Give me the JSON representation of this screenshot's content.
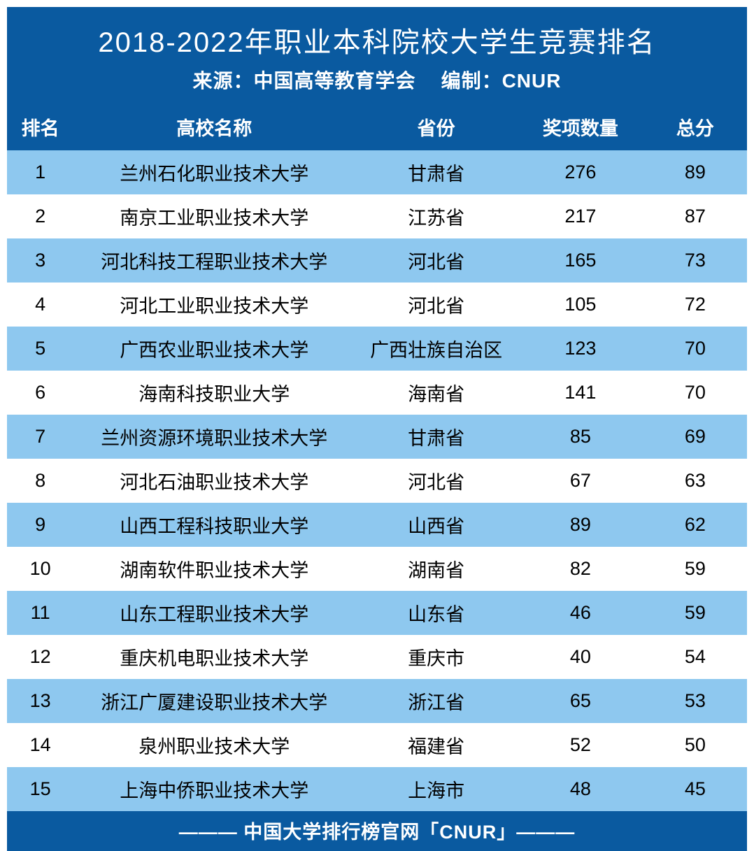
{
  "colors": {
    "header_bg": "#0a5aa0",
    "header_text": "#ffffff",
    "thead_bg": "#0a5aa0",
    "thead_text": "#ffffff",
    "row_even_bg": "#8ec8ef",
    "row_odd_bg": "#ffffff",
    "row_text": "#000000",
    "footer_bg": "#0a5aa0",
    "footer_text": "#ffffff"
  },
  "title": "2018-2022年职业本科院校大学生竞赛排名",
  "subtitle_source_label": "来源：",
  "subtitle_source_value": "中国高等教育学会",
  "subtitle_compiled_label": "编制：",
  "subtitle_compiled_value": "CNUR",
  "columns": {
    "rank": "排名",
    "name": "高校名称",
    "province": "省份",
    "awards": "奖项数量",
    "score": "总分"
  },
  "rows": [
    {
      "rank": "1",
      "name": "兰州石化职业技术大学",
      "province": "甘肃省",
      "awards": "276",
      "score": "89"
    },
    {
      "rank": "2",
      "name": "南京工业职业技术大学",
      "province": "江苏省",
      "awards": "217",
      "score": "87"
    },
    {
      "rank": "3",
      "name": "河北科技工程职业技术大学",
      "province": "河北省",
      "awards": "165",
      "score": "73"
    },
    {
      "rank": "4",
      "name": "河北工业职业技术大学",
      "province": "河北省",
      "awards": "105",
      "score": "72"
    },
    {
      "rank": "5",
      "name": "广西农业职业技术大学",
      "province": "广西壮族自治区",
      "awards": "123",
      "score": "70"
    },
    {
      "rank": "6",
      "name": "海南科技职业大学",
      "province": "海南省",
      "awards": "141",
      "score": "70"
    },
    {
      "rank": "7",
      "name": "兰州资源环境职业技术大学",
      "province": "甘肃省",
      "awards": "85",
      "score": "69"
    },
    {
      "rank": "8",
      "name": "河北石油职业技术大学",
      "province": "河北省",
      "awards": "67",
      "score": "63"
    },
    {
      "rank": "9",
      "name": "山西工程科技职业大学",
      "province": "山西省",
      "awards": "89",
      "score": "62"
    },
    {
      "rank": "10",
      "name": "湖南软件职业技术大学",
      "province": "湖南省",
      "awards": "82",
      "score": "59"
    },
    {
      "rank": "11",
      "name": "山东工程职业技术大学",
      "province": "山东省",
      "awards": "46",
      "score": "59"
    },
    {
      "rank": "12",
      "name": "重庆机电职业技术大学",
      "province": "重庆市",
      "awards": "40",
      "score": "54"
    },
    {
      "rank": "13",
      "name": "浙江广厦建设职业技术大学",
      "province": "浙江省",
      "awards": "65",
      "score": "53"
    },
    {
      "rank": "14",
      "name": "泉州职业技术大学",
      "province": "福建省",
      "awards": "52",
      "score": "50"
    },
    {
      "rank": "15",
      "name": "上海中侨职业技术大学",
      "province": "上海市",
      "awards": "48",
      "score": "45"
    }
  ],
  "footer_text": "——— 中国大学排行榜官网「CNUR」———"
}
